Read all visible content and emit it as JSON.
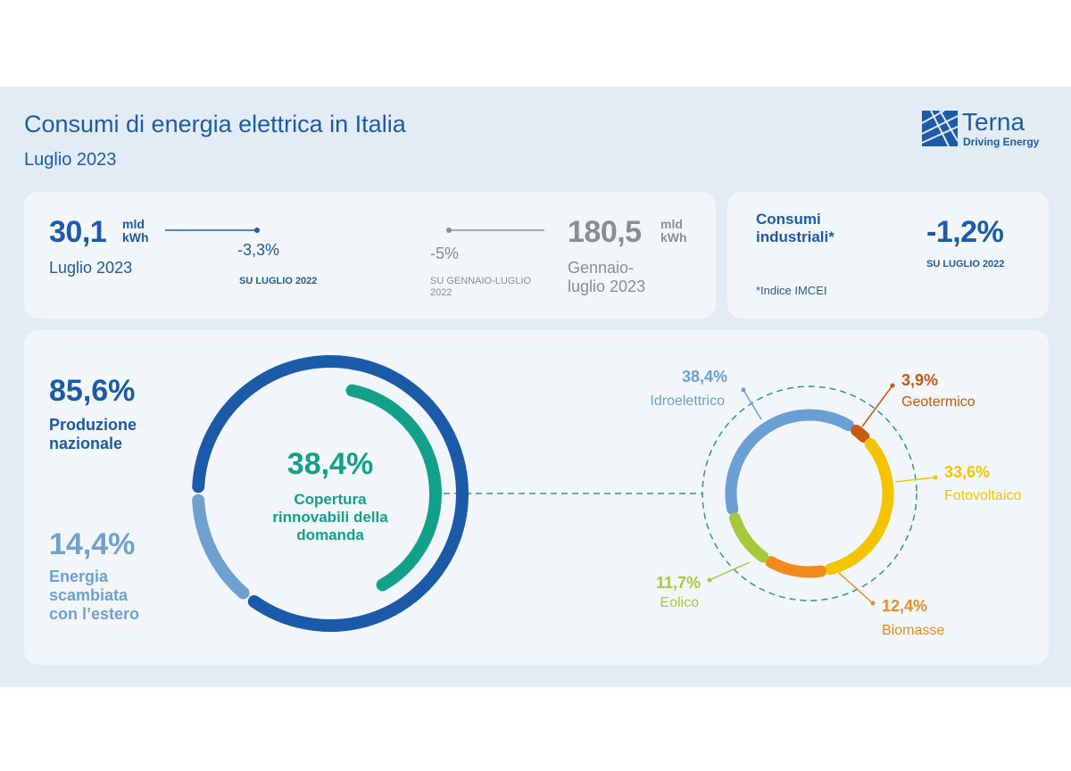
{
  "header": {
    "title": "Consumi di energia elettrica in Italia",
    "subtitle": "Luglio 2023",
    "logo": {
      "name": "Terna",
      "tagline": "Driving Energy"
    }
  },
  "kpi": {
    "monthly": {
      "value": "30,1",
      "unit": "mld kWh",
      "period": "Luglio 2023",
      "change": "-3,3%",
      "change_ref": "SU LUGLIO 2022"
    },
    "ytd": {
      "value": "180,5",
      "unit": "mld kWh",
      "period": "Gennaio-luglio 2023",
      "change": "-5%",
      "change_ref": "SU GENNAIO-LUGLIO 2022"
    },
    "industrial": {
      "label": "Consumi industriali*",
      "note": "*Indice IMCEI",
      "change": "-1,2%",
      "change_ref": "SU LUGLIO 2022"
    }
  },
  "chart_data": [
    {
      "type": "donut",
      "categories": [
        "Produzione nazionale",
        "Energia scambiata con l’estero"
      ],
      "values": [
        85.6,
        14.4
      ],
      "value_labels": [
        "85,6%",
        "14,4%"
      ],
      "colors": [
        "#1b5aa8",
        "#6ea0d0"
      ],
      "inner": {
        "label": "Copertura rinnovabili della domanda",
        "value": 38.4,
        "value_label": "38,4%",
        "color": "#13a08a"
      }
    },
    {
      "type": "donut",
      "categories": [
        "Idroelettrico",
        "Geotermico",
        "Fotovoltaico",
        "Biomasse",
        "Eolico"
      ],
      "values": [
        38.4,
        3.9,
        33.6,
        12.4,
        11.7
      ],
      "value_labels": [
        "38,4%",
        "3,9%",
        "33,6%",
        "12,4%",
        "11,7%"
      ],
      "colors": [
        "#6a9fd4",
        "#c65a10",
        "#f5c400",
        "#f08a1e",
        "#a8c83c"
      ]
    }
  ]
}
